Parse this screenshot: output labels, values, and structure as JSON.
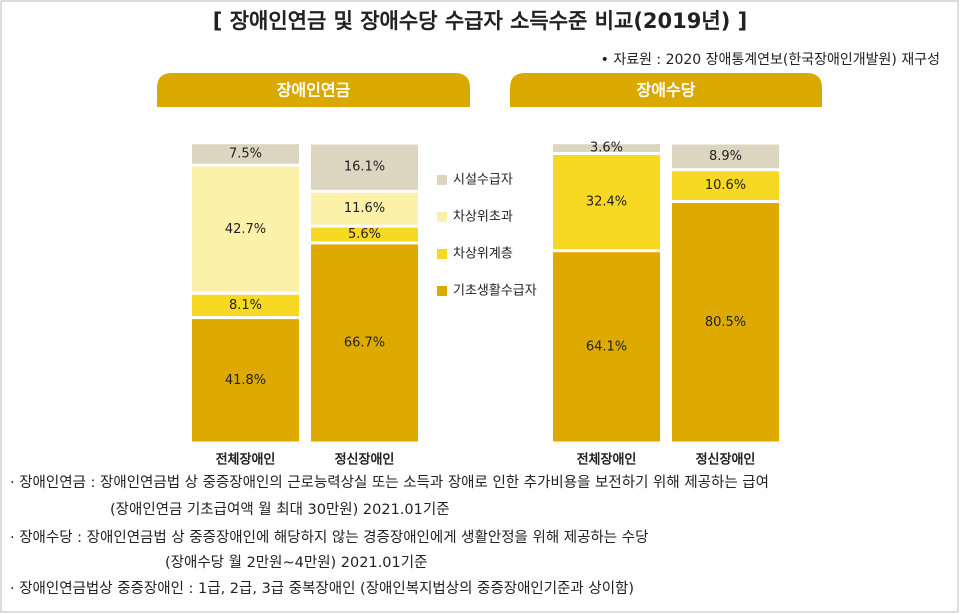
{
  "title": "[ 장애인연금 및 장애수당 수급자 소득수준 비교(2019년) ]",
  "source": "• 자료원 : 2020 장애통계연보(한국장애인개발원) 재구성",
  "chart_data": [
    {
      "type": "bar",
      "stacked": true,
      "title": "장애인연금",
      "categories": [
        "전체장애인",
        "정신장애인"
      ],
      "ylim": [
        0,
        100
      ],
      "series": [
        {
          "name": "기초생활수급자",
          "color": "#deaa00",
          "values": [
            41.8,
            66.7
          ],
          "value_labels": [
            "41.8%",
            "66.7%"
          ]
        },
        {
          "name": "차상위계층",
          "color": "#f7d923",
          "values": [
            8.1,
            5.6
          ],
          "value_labels": [
            "8.1%",
            "5.6%"
          ]
        },
        {
          "name": "차상위초과",
          "color": "#fcf1a8",
          "values": [
            42.7,
            11.6
          ],
          "value_labels": [
            "42.7%",
            "11.6%"
          ]
        },
        {
          "name": "시설수급자",
          "color": "#dcd6c0",
          "values": [
            7.5,
            16.1
          ],
          "value_labels": [
            "7.5%",
            "16.1%"
          ]
        }
      ]
    },
    {
      "type": "bar",
      "stacked": true,
      "title": "장애수당",
      "categories": [
        "전체장애인",
        "정신장애인"
      ],
      "ylim": [
        0,
        100
      ],
      "series": [
        {
          "color": "#deaa00",
          "values": [
            64.1,
            80.5
          ],
          "value_labels": [
            "64.1%",
            "80.5%"
          ]
        },
        {
          "color": "#f7d923",
          "values": [
            32.4,
            10.6
          ],
          "value_labels": [
            "32.4%",
            "10.6%"
          ]
        },
        {
          "color": "#dcd6c0",
          "values": [
            3.6,
            8.9
          ],
          "value_labels": [
            "3.6%",
            "8.9%"
          ]
        }
      ]
    }
  ],
  "notes": [
    "· 장애인연금 : 장애인연금법 상 중증장애인의 근로능력상실 또는 소득과 장애로 인한 추가비용을 보전하기 위해 제공하는 급여",
    "(장애인연금 기초급여액 월 최대 30만원) 2021.01기준",
    "· 장애수당 : 장애인연금법 상 중증장애인에 해당하지 않는 경증장애인에게 생활안정을 위해 제공하는 수당",
    "(장애수당 월 2만원~4만원)   2021.01기준",
    "· 장애인연금법상 중증장애인 : 1급, 2급, 3급 중복장애인 (장애인복지법상의 중증장애인기준과 상이함)"
  ]
}
